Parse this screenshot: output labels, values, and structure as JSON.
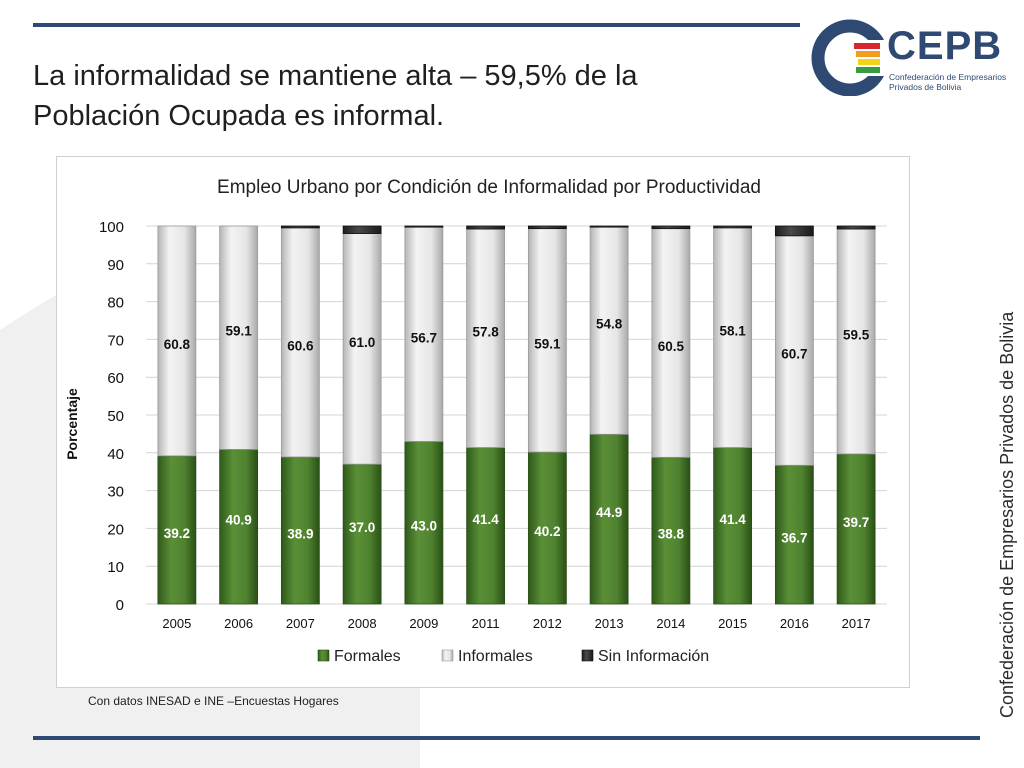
{
  "slide": {
    "title": "La informalidad se mantiene alta – 59,5% de la Población Ocupada es informal.",
    "source_note": "Con datos INESAD e INE –Encuestas Hogares",
    "side_text": "Confederación de Empresarios Privados de Bolivia"
  },
  "logo": {
    "word": "CEPB",
    "subtitle": "Confederación de Empresarios Privados de Bolivia",
    "colors": {
      "blue": "#2e4a73",
      "red": "#d7262d",
      "orange": "#f39c1e",
      "yellow": "#f4d31b",
      "green": "#3a9a3f"
    }
  },
  "colors": {
    "rule": "#2e4a73",
    "formales": "#4a7a2c",
    "informales": "#e2e2e2",
    "sin_info": "#3a3a3a"
  },
  "chart_data": {
    "type": "bar",
    "stacked": true,
    "title": "Empleo Urbano por Condición de Informalidad por Productividad",
    "xlabel": "",
    "ylabel": "Porcentaje",
    "ylim": [
      0,
      100
    ],
    "yticks": [
      0,
      10,
      20,
      30,
      40,
      50,
      60,
      70,
      80,
      90,
      100
    ],
    "grid": true,
    "legend_position": "bottom",
    "categories": [
      "2005",
      "2006",
      "2007",
      "2008",
      "2009",
      "2011",
      "2012",
      "2013",
      "2014",
      "2015",
      "2016",
      "2017"
    ],
    "series": [
      {
        "name": "Formales",
        "values": [
          39.2,
          40.9,
          38.9,
          37.0,
          43.0,
          41.4,
          40.2,
          44.9,
          38.8,
          41.4,
          36.7,
          39.7
        ],
        "labels": [
          "39.2",
          "40.9",
          "38.9",
          "37.0",
          "43.0",
          "41.4",
          "40.2",
          "44.9",
          "38.8",
          "41.4",
          "36.7",
          "39.7"
        ]
      },
      {
        "name": "Informales",
        "values": [
          60.8,
          59.1,
          60.6,
          61.0,
          56.7,
          57.8,
          59.1,
          54.8,
          60.5,
          58.1,
          60.7,
          59.5
        ],
        "labels": [
          "60.8",
          "59.1",
          "60.6",
          "61.0",
          "56.7",
          "57.8",
          "59.1",
          "54.8",
          "60.5",
          "58.1",
          "60.7",
          "59.5"
        ]
      },
      {
        "name": "Sin Información",
        "values": [
          0.0,
          0.0,
          0.5,
          2.0,
          0.3,
          0.8,
          0.7,
          0.3,
          0.7,
          0.5,
          2.6,
          0.8
        ]
      }
    ]
  }
}
